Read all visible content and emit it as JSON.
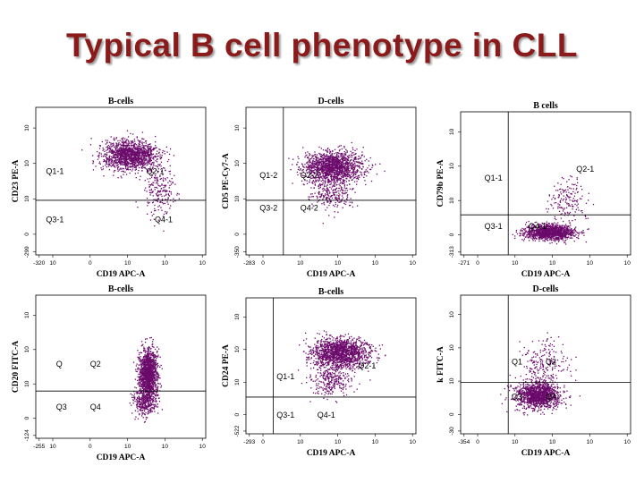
{
  "slide": {
    "title": "Typical B cell phenotype in CLL"
  },
  "colors": {
    "title": "#8b1a1a",
    "events": "#6b0a6b"
  },
  "chart_data": [
    {
      "type": "scatter",
      "title": "B-cells",
      "xlabel": "CD19 APC-A",
      "ylabel": "CD23 PE-A",
      "xticks": [
        "-320",
        "10",
        "0",
        "10",
        "10",
        "10"
      ],
      "yticks": [
        "-299",
        "0",
        "10",
        "10",
        "10"
      ],
      "quadrants": [
        "Q1-1",
        "Q2-1",
        "Q3-1",
        "Q4-1"
      ],
      "populations": [
        {
          "name": "",
          "x": 0.55,
          "y": 0.68,
          "sx": 0.18,
          "sy": 0.11,
          "n": 1400
        },
        {
          "name": "",
          "x": 0.72,
          "y": 0.45,
          "sx": 0.1,
          "sy": 0.2,
          "n": 220
        }
      ]
    },
    {
      "type": "scatter",
      "title": "D-cells",
      "xlabel": "CD19 APC-A",
      "ylabel": "CD5 PE-Cy7-A",
      "xticks": [
        "-283",
        "0",
        "10",
        "10",
        "10",
        "10"
      ],
      "yticks": [
        "-350",
        "0",
        "10",
        "10",
        "10"
      ],
      "quadrants": [
        "Q1-2",
        "Q2-2",
        "Q3-2",
        "Q4-2"
      ],
      "populations": [
        {
          "name": "",
          "x": 0.51,
          "y": 0.6,
          "sx": 0.19,
          "sy": 0.11,
          "n": 1500
        },
        {
          "name": "",
          "x": 0.5,
          "y": 0.42,
          "sx": 0.15,
          "sy": 0.12,
          "n": 250
        }
      ]
    },
    {
      "type": "scatter",
      "title": "B cells",
      "xlabel": "CD19 APC-A",
      "ylabel": "CD79b PE-A",
      "xticks": [
        "-271",
        "0",
        "10",
        "10",
        "10",
        "10"
      ],
      "yticks": [
        "-313",
        "0",
        "10",
        "10",
        "10"
      ],
      "quadrants": [
        "Q1-1",
        "Q2-1",
        "Q3-1",
        "Q4-1"
      ],
      "populations": [
        {
          "name": "",
          "x": 0.52,
          "y": 0.16,
          "sx": 0.16,
          "sy": 0.06,
          "n": 1300
        },
        {
          "name": "",
          "x": 0.62,
          "y": 0.4,
          "sx": 0.12,
          "sy": 0.18,
          "n": 160
        }
      ]
    },
    {
      "type": "scatter",
      "title": "B-cells",
      "xlabel": "CD19 APC-A",
      "ylabel": "CD20 FITC-A",
      "xticks": [
        "-255",
        "10",
        "0",
        "10",
        "10",
        "10"
      ],
      "yticks": [
        "-124",
        "0",
        "10",
        "10",
        "10"
      ],
      "quadrants": [
        "Q",
        "Q2",
        "Q3",
        "Q4"
      ],
      "populations": [
        {
          "name": "",
          "x": 0.66,
          "y": 0.46,
          "sx": 0.06,
          "sy": 0.18,
          "n": 1400
        },
        {
          "name": "",
          "x": 0.64,
          "y": 0.26,
          "sx": 0.08,
          "sy": 0.1,
          "n": 350
        }
      ]
    },
    {
      "type": "scatter",
      "title": "B-cells",
      "xlabel": "CD19 APC-A",
      "ylabel": "CD24 PE-A",
      "xticks": [
        "-293",
        "0",
        "10",
        "10",
        "10",
        "10"
      ],
      "yticks": [
        "-522",
        "0",
        "10",
        "10",
        "10"
      ],
      "quadrants": [
        "Q1-1",
        "Q2-1",
        "Q3-1",
        "Q4-1"
      ],
      "populations": [
        {
          "name": "",
          "x": 0.55,
          "y": 0.6,
          "sx": 0.18,
          "sy": 0.12,
          "n": 1500
        },
        {
          "name": "",
          "x": 0.5,
          "y": 0.4,
          "sx": 0.14,
          "sy": 0.12,
          "n": 300
        }
      ]
    },
    {
      "type": "scatter",
      "title": "D-cells",
      "xlabel": "CD19 APC-A",
      "ylabel": "k FITC-A",
      "xticks": [
        "-354",
        "0",
        "10",
        "10",
        "10",
        "10"
      ],
      "yticks": [
        "-30",
        "0",
        "10",
        "10",
        "10"
      ],
      "quadrants": [
        "Q1",
        "Q2",
        "Q3",
        "Q4"
      ],
      "populations": [
        {
          "name": "",
          "x": 0.45,
          "y": 0.28,
          "sx": 0.14,
          "sy": 0.1,
          "n": 1300
        },
        {
          "name": "",
          "x": 0.5,
          "y": 0.5,
          "sx": 0.16,
          "sy": 0.2,
          "n": 220
        }
      ]
    }
  ]
}
